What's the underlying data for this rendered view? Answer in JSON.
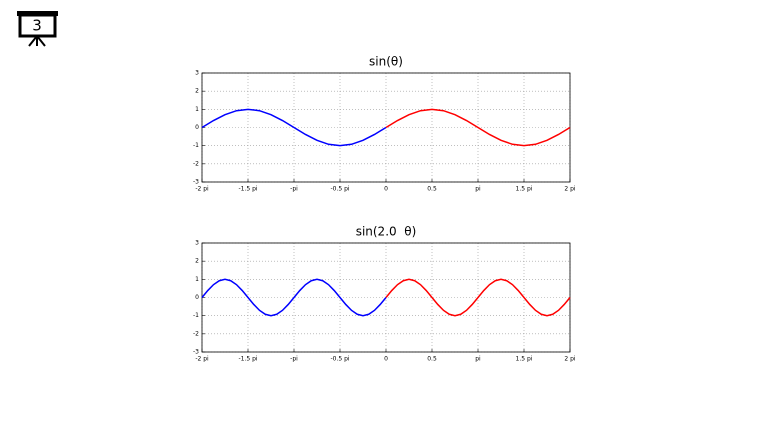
{
  "slide_number": "3",
  "chart_data": [
    {
      "type": "line",
      "title": "sin(θ)",
      "xlim": [
        -2,
        2
      ],
      "xticks": [
        {
          "value": -2,
          "label": "-2 pi"
        },
        {
          "value": -1.5,
          "label": "-1.5 pi"
        },
        {
          "value": -1,
          "label": "-pi"
        },
        {
          "value": -0.5,
          "label": "-0.5 pi"
        },
        0,
        0.5,
        {
          "value": 1,
          "label": "pi"
        },
        {
          "value": 1.5,
          "label": "1.5 pi"
        },
        {
          "value": 2,
          "label": "2 pi"
        }
      ],
      "ylim": [
        -3,
        3
      ],
      "yticks": [
        -3,
        -2,
        -1,
        0,
        1,
        2,
        3
      ],
      "grid": true,
      "series": [
        {
          "color": "#0000ff",
          "x": [
            -2,
            -1.875,
            -1.75,
            -1.625,
            -1.5,
            -1.375,
            -1.25,
            -1.125,
            -1,
            -0.875,
            -0.75,
            -0.625,
            -0.5,
            -0.375,
            -0.25,
            -0.125,
            0
          ],
          "values": [
            0,
            0.383,
            0.707,
            0.924,
            1,
            0.924,
            0.707,
            0.383,
            0,
            -0.383,
            -0.707,
            -0.924,
            -1,
            -0.924,
            -0.707,
            -0.383,
            0
          ]
        },
        {
          "color": "#ff0000",
          "x": [
            0,
            0.125,
            0.25,
            0.375,
            0.5,
            0.625,
            0.75,
            0.875,
            1,
            1.125,
            1.25,
            1.375,
            1.5,
            1.625,
            1.75,
            1.875,
            2
          ],
          "values": [
            0,
            0.383,
            0.707,
            0.924,
            1,
            0.924,
            0.707,
            0.383,
            0,
            -0.383,
            -0.707,
            -0.924,
            -1,
            -0.924,
            -0.707,
            -0.383,
            0
          ]
        }
      ]
    },
    {
      "type": "line",
      "title": "sin(2.0  θ)",
      "xlim": [
        -2,
        2
      ],
      "xticks": [
        {
          "value": -2,
          "label": "-2 pi"
        },
        {
          "value": -1.5,
          "label": "-1.5 pi"
        },
        {
          "value": -1,
          "label": "-pi"
        },
        {
          "value": -0.5,
          "label": "-0.5 pi"
        },
        0,
        0.5,
        {
          "value": 1,
          "label": "pi"
        },
        {
          "value": 1.5,
          "label": "1.5 pi"
        },
        {
          "value": 2,
          "label": "2 pi"
        }
      ],
      "ylim": [
        -3,
        3
      ],
      "yticks": [
        -3,
        -2,
        -1,
        0,
        1,
        2,
        3
      ],
      "grid": true,
      "series": [
        {
          "color": "#0000ff",
          "x": [
            -2,
            -1.9375,
            -1.875,
            -1.8125,
            -1.75,
            -1.6875,
            -1.625,
            -1.5625,
            -1.5,
            -1.4375,
            -1.375,
            -1.3125,
            -1.25,
            -1.1875,
            -1.125,
            -1.0625,
            -1,
            -0.9375,
            -0.875,
            -0.8125,
            -0.75,
            -0.6875,
            -0.625,
            -0.5625,
            -0.5,
            -0.4375,
            -0.375,
            -0.3125,
            -0.25,
            -0.1875,
            -0.125,
            -0.0625,
            0
          ],
          "values": [
            0,
            0.383,
            0.707,
            0.924,
            1,
            0.924,
            0.707,
            0.383,
            0,
            -0.383,
            -0.707,
            -0.924,
            -1,
            -0.924,
            -0.707,
            -0.383,
            0,
            0.383,
            0.707,
            0.924,
            1,
            0.924,
            0.707,
            0.383,
            0,
            -0.383,
            -0.707,
            -0.924,
            -1,
            -0.924,
            -0.707,
            -0.383,
            0
          ]
        },
        {
          "color": "#ff0000",
          "x": [
            0,
            0.0625,
            0.125,
            0.1875,
            0.25,
            0.3125,
            0.375,
            0.4375,
            0.5,
            0.5625,
            0.625,
            0.6875,
            0.75,
            0.8125,
            0.875,
            0.9375,
            1,
            1.0625,
            1.125,
            1.1875,
            1.25,
            1.3125,
            1.375,
            1.4375,
            1.5,
            1.5625,
            1.625,
            1.6875,
            1.75,
            1.8125,
            1.875,
            1.9375,
            2
          ],
          "values": [
            0,
            0.383,
            0.707,
            0.924,
            1,
            0.924,
            0.707,
            0.383,
            0,
            -0.383,
            -0.707,
            -0.924,
            -1,
            -0.924,
            -0.707,
            -0.383,
            0,
            0.383,
            0.707,
            0.924,
            1,
            0.924,
            0.707,
            0.383,
            0,
            -0.383,
            -0.707,
            -0.924,
            -1,
            -0.924,
            -0.707,
            -0.383,
            0
          ]
        }
      ]
    }
  ]
}
